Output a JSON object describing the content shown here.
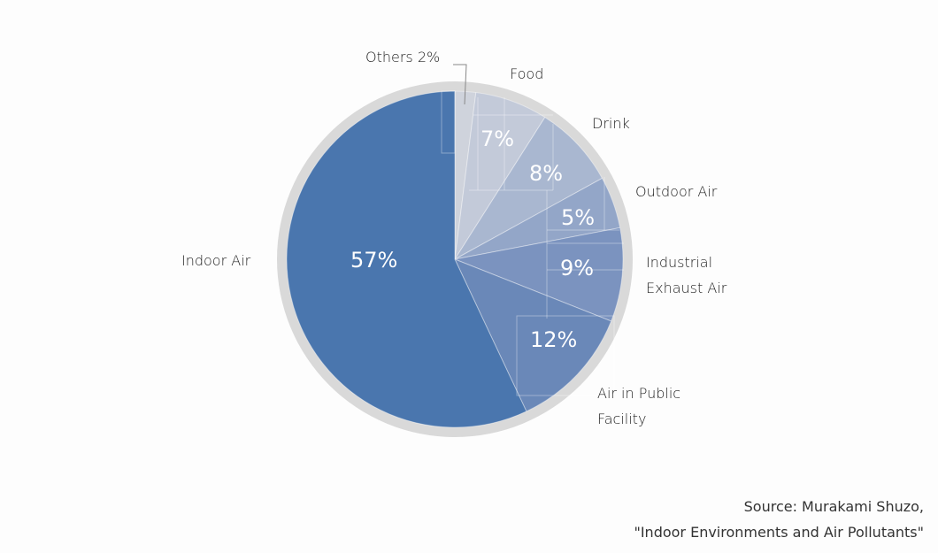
{
  "chart_data": {
    "type": "pie",
    "title": "",
    "start_angle_deg": 0,
    "direction": "clockwise",
    "categories": [
      "Others",
      "Food",
      "Drink",
      "Outdoor Air",
      "Industrial Exhaust Air",
      "Air in Public Facility",
      "Indoor Air"
    ],
    "values": [
      2,
      7,
      8,
      5,
      9,
      12,
      57
    ],
    "unit": "%",
    "colors": [
      "#cfd3dc",
      "#c3cad9",
      "#a9b7d0",
      "#93a6c8",
      "#7b93bf",
      "#6a88b8",
      "#4a76ae"
    ],
    "ring_color": "#d9d9d9",
    "data_labels": [
      "7%",
      "8%",
      "5%",
      "9%",
      "12%",
      "57%"
    ],
    "source": [
      "Source: Murakami Shuzo,",
      "\"Indoor Environments and Air Pollutants\""
    ]
  },
  "labels": {
    "others": "Others 2%",
    "food": "Food",
    "drink": "Drink",
    "outdoor": "Outdoor Air",
    "industrial_1": "Industrial",
    "industrial_2": "Exhaust Air",
    "public_1": "Air in Public",
    "public_2": "Facility",
    "indoor": "Indoor Air"
  },
  "pcts": {
    "food": "7%",
    "drink": "8%",
    "outdoor": "5%",
    "industrial": "9%",
    "public": "12%",
    "indoor": "57%"
  },
  "source": {
    "line1": "Source: Murakami Shuzo,",
    "line2": "\"Indoor Environments and Air Pollutants\""
  }
}
